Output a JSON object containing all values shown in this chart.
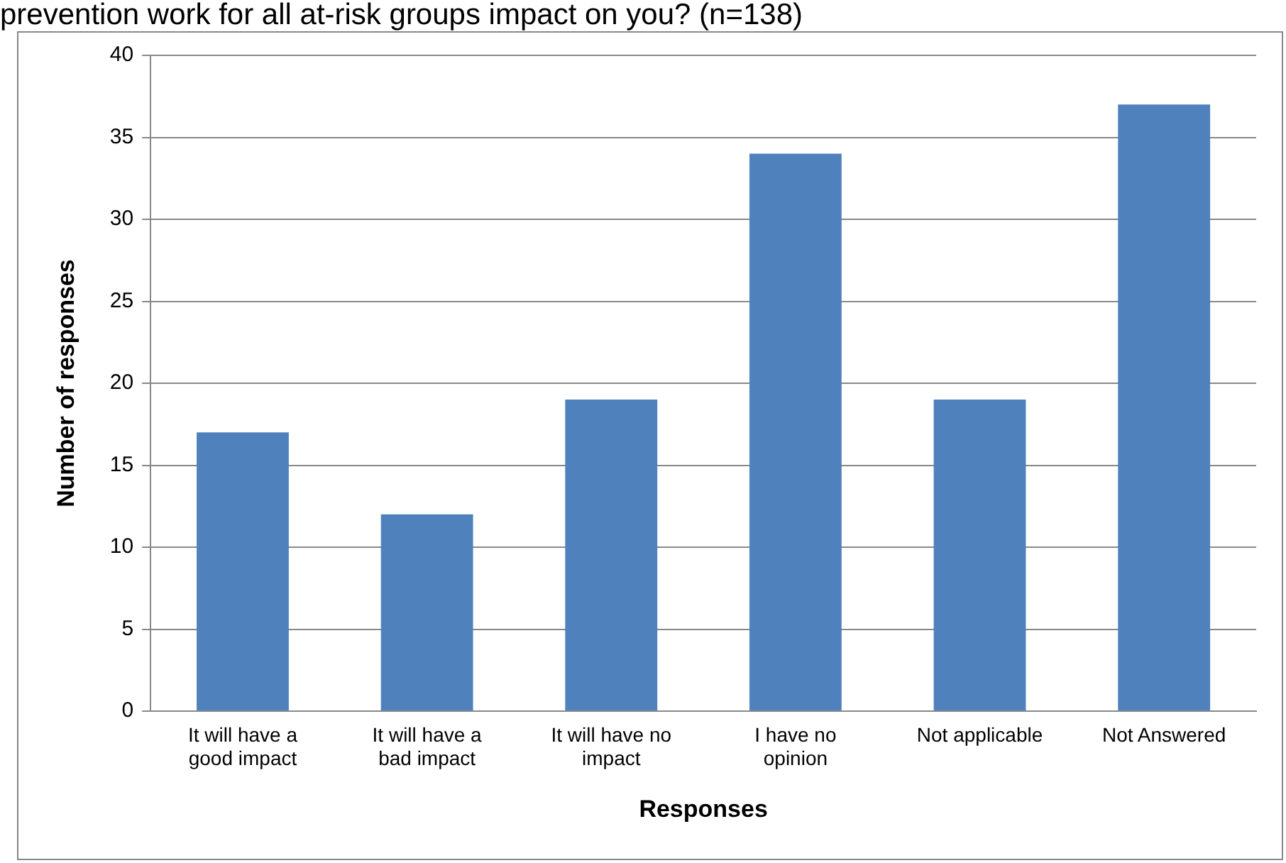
{
  "chart_data": {
    "type": "bar",
    "title": "prevention work for all at-risk groups impact on you? (n=138)",
    "categories": [
      "It will have a good impact",
      "It will have a bad impact",
      "It will have no impact",
      "I have no opinion",
      "Not applicable",
      "Not Answered"
    ],
    "values": [
      17,
      12,
      19,
      34,
      19,
      37
    ],
    "color": "#4f81bd",
    "xlabel": "Responses",
    "ylabel": "Number of responses",
    "ylim": [
      0,
      40
    ],
    "yticks": [
      0,
      5,
      10,
      15,
      20,
      25,
      30,
      35,
      40
    ],
    "grid": "y",
    "legend": false
  }
}
